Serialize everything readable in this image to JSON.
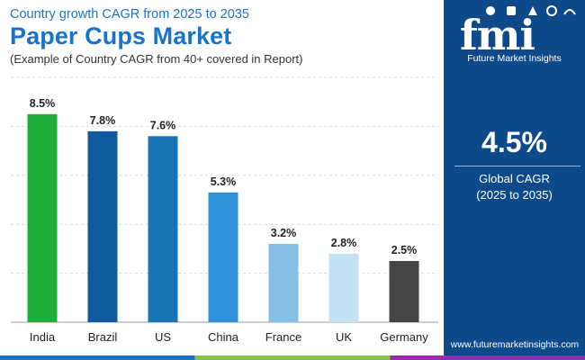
{
  "header": {
    "subtitle": "Country growth CAGR from 2025 to 2035",
    "title": "Paper Cups Market",
    "note": "(Example of Country CAGR from 40+ covered in Report)"
  },
  "brand": {
    "logo_text": "fmi",
    "logo_subtitle": "Future Market Insights",
    "website": "www.futuremarketinsights.com",
    "colors": {
      "primary": "#1a73c9",
      "panel": "#0e4a8a"
    }
  },
  "summary": {
    "global_cagr_value": "4.5%",
    "global_cagr_label": "Global CAGR",
    "global_cagr_period": "(2025 to 2035)"
  },
  "chart_data": {
    "type": "bar",
    "title": "",
    "xlabel": "",
    "ylabel": "",
    "categories": [
      "India",
      "Brazil",
      "US",
      "China",
      "France",
      "UK",
      "Germany"
    ],
    "values": [
      8.5,
      7.8,
      7.6,
      5.3,
      3.2,
      2.8,
      2.5
    ],
    "value_labels": [
      "8.5%",
      "7.8%",
      "7.6%",
      "5.3%",
      "3.2%",
      "2.8%",
      "2.5%"
    ],
    "bar_colors": [
      "#1fae3c",
      "#0f5a9c",
      "#1a73b5",
      "#2f91d8",
      "#86bfe6",
      "#c3e1f4",
      "#454545"
    ],
    "ylim": [
      0,
      10
    ],
    "grid": true,
    "legend": "none"
  },
  "footer_colors": [
    "#1a73c9",
    "#8bc34a",
    "#9c27b0"
  ]
}
